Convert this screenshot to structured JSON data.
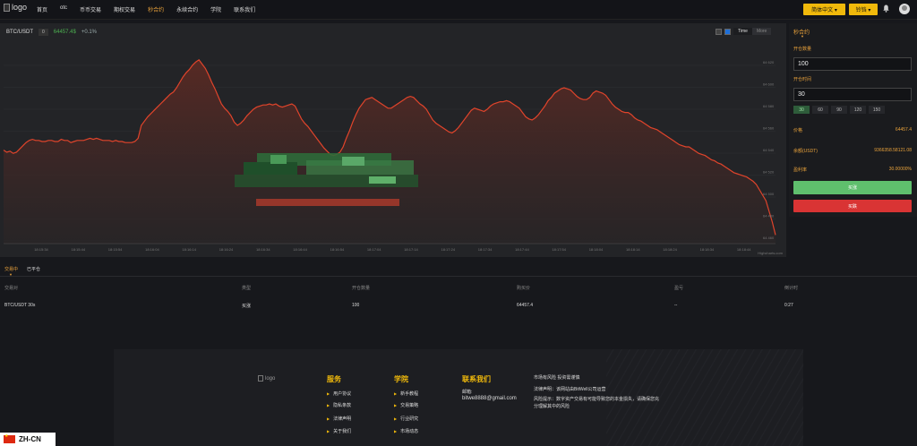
{
  "header": {
    "logo_alt": "logo",
    "nav": [
      "首页",
      "otc",
      "币币交易",
      "期权交易",
      "秒合约",
      "永续合约",
      "学院",
      "联系我们"
    ],
    "active_nav": "秒合约",
    "lang_button": "简体中文 ▾",
    "user_button": "铃铛 ▾",
    "colors": {
      "accent": "#f0b90b",
      "active_nav": "#e9a23b"
    }
  },
  "chart": {
    "pair": "BTC/USDT",
    "badge": "0",
    "price": "64457.4$",
    "change": "+0.1%",
    "modes": [
      "Time",
      "More"
    ],
    "active_mode": "Time",
    "credit": "Highcharts.com",
    "y_ticks": [
      "64 620",
      "64 600",
      "64 580",
      "64 560",
      "64 540",
      "64 520",
      "64 500",
      "64 480",
      "64 460"
    ],
    "x_ticks": [
      "18:15:34",
      "18:15:44",
      "18:15:54",
      "18:16:04",
      "18:16:14",
      "18:16:24",
      "18:16:34",
      "18:16:44",
      "18:16:54",
      "18:17:04",
      "18:17:14",
      "18:17:24",
      "18:17:34",
      "18:17:44",
      "18:17:54",
      "18:18:04",
      "18:18:14",
      "18:18:24",
      "18:18:34",
      "18:18:44"
    ],
    "colors": {
      "line": "#e0442b",
      "area_top": "#5a2a24"
    }
  },
  "chart_data": {
    "type": "area",
    "title": "",
    "xlabel": "",
    "ylabel": "",
    "ylim": [
      64450,
      64630
    ],
    "series": [
      {
        "values": [
          64537,
          64535,
          64536,
          64534,
          64535,
          64538,
          64541,
          64544,
          64546,
          64547,
          64546,
          64546,
          64545,
          64545,
          64546,
          64546,
          64545,
          64545,
          64547,
          64546,
          64546,
          64544,
          64545,
          64546,
          64546,
          64546,
          64547,
          64548,
          64547,
          64548,
          64547,
          64546,
          64546,
          64546,
          64545,
          64546,
          64545,
          64545,
          64544,
          64544,
          64544,
          64545,
          64548,
          64560,
          64564,
          64568,
          64571,
          64574,
          64577,
          64580,
          64583,
          64586,
          64589,
          64591,
          64595,
          64600,
          64605,
          64609,
          64612,
          64616,
          64619,
          64621,
          64617,
          64613,
          64607,
          64600,
          64594,
          64587,
          64580,
          64576,
          64573,
          64569,
          64563,
          64560,
          64562,
          64565,
          64569,
          64572,
          64575,
          64577,
          64578,
          64579,
          64579,
          64580,
          64579,
          64580,
          64578,
          64577,
          64578,
          64579,
          64580,
          64578,
          64572,
          64566,
          64562,
          64559,
          64555,
          64551,
          64547,
          64543,
          64539,
          64536,
          64533,
          64532,
          64533,
          64535,
          64540,
          64548,
          64555,
          64563,
          64570,
          64576,
          64580,
          64584,
          64585,
          64586,
          64584,
          64582,
          64580,
          64578,
          64576,
          64576,
          64578,
          64580,
          64582,
          64584,
          64586,
          64587,
          64586,
          64583,
          64580,
          64578,
          64575,
          64570,
          64565,
          64562,
          64560,
          64558,
          64556,
          64554,
          64553,
          64555,
          64558,
          64562,
          64566,
          64570,
          64574,
          64576,
          64575,
          64574,
          64573,
          64575,
          64578,
          64580,
          64581,
          64582,
          64582,
          64583,
          64582,
          64580,
          64578,
          64576,
          64572,
          64568,
          64566,
          64565,
          64567,
          64570,
          64574,
          64578,
          64583,
          64586,
          64590,
          64592,
          64594,
          64595,
          64594,
          64593,
          64590,
          64587,
          64585,
          64584,
          64584,
          64586,
          64590,
          64592,
          64591,
          64590,
          64588,
          64584,
          64580,
          64577,
          64575,
          64573,
          64572,
          64572,
          64570,
          64567,
          64565,
          64564,
          64562,
          64560,
          64558,
          64557,
          64556,
          64554,
          64552,
          64550,
          64548,
          64546,
          64544,
          64542,
          64541,
          64540,
          64540,
          64538,
          64536,
          64534,
          64533,
          64532,
          64530,
          64528,
          64527,
          64525,
          64524,
          64522,
          64520,
          64518,
          64516,
          64515,
          64514,
          64513,
          64512,
          64510,
          64508,
          64505,
          64500,
          64495,
          64490,
          64480,
          64470,
          64458
        ]
      }
    ],
    "grid": true,
    "legend": "none"
  },
  "side": {
    "tab": "秒合约",
    "amount_label": "开仓数量",
    "amount_value": "100",
    "time_label": "开仓时间",
    "time_value": "30",
    "durations": [
      "30",
      "60",
      "90",
      "120",
      "150"
    ],
    "active_duration": "30",
    "price_k": "价格",
    "price_v": "64457.4",
    "balance_k": "余额(USDT)",
    "balance_v": "9366358.58121.08",
    "profit_k": "盈利率",
    "profit_v": "30.00000%",
    "buy": "买涨",
    "sell": "买跌",
    "colors": {
      "buy": "#5fbf6d",
      "sell": "#d93434"
    }
  },
  "orders": {
    "tabs": [
      "交易中",
      "已平仓"
    ],
    "active_tab": "交易中",
    "columns": [
      "交易对",
      "类型",
      "开仓数量",
      "购买价",
      "盈亏",
      "倒计时"
    ],
    "rows": [
      [
        "BTC/USDT 30s",
        "买涨",
        "100",
        "64457.4",
        "--",
        "0:27"
      ]
    ]
  },
  "footer": {
    "logo_alt": "logo",
    "services_title": "服务",
    "services": [
      "用户协议",
      "隐私条款",
      "法律声明",
      "关于我们"
    ],
    "academy_title": "学院",
    "academy": [
      "新手教程",
      "交易策略",
      "行业研究",
      "市场动态"
    ],
    "contact_title": "联系我们",
    "email_label": "邮箱:",
    "email": "bitwe8888@gmail.com",
    "note1": "市场有风险 投资需谨慎",
    "note2": "法律声明：该网站由BitWell公司运营",
    "note3": "风险提示：数字资产交易有可能导致您的本金损失，请确保您充分理解其中的风险"
  },
  "lang_float": "ZH-CN"
}
